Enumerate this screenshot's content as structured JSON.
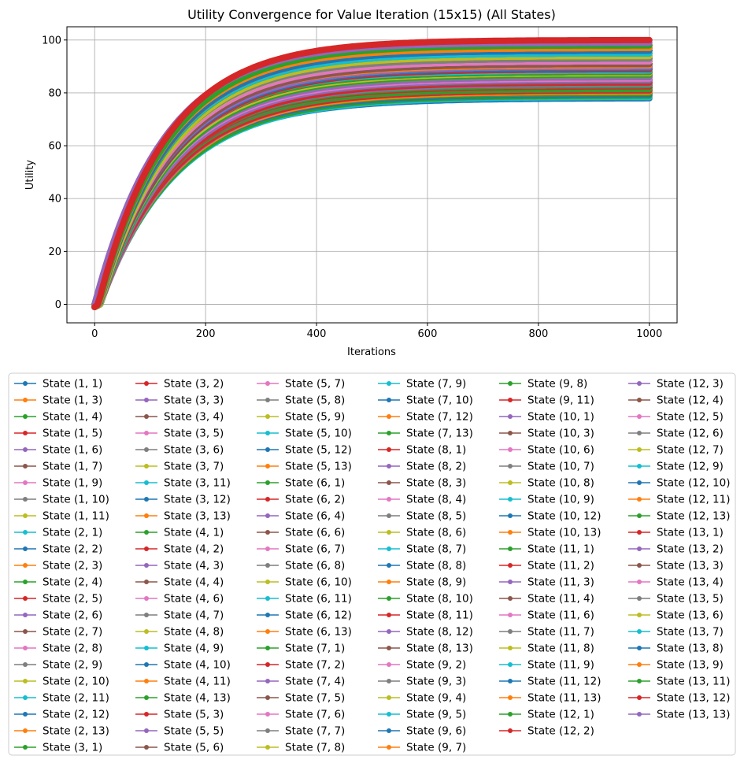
{
  "chart_data": {
    "type": "line",
    "title": "Utility Convergence for Value Iteration (15x15) (All States)",
    "xlabel": "Iterations",
    "ylabel": "Utility",
    "xlim": [
      -50,
      1050
    ],
    "ylim": [
      -7,
      105
    ],
    "x_ticks": [
      0,
      200,
      400,
      600,
      800,
      1000
    ],
    "y_ticks": [
      0,
      20,
      40,
      60,
      80,
      100
    ],
    "grid": true,
    "marker": "circle",
    "legend_placement": "below plot, 6 columns",
    "x_start": 0,
    "x_end": 1000,
    "series": [
      {
        "name": "State (1, 1)",
        "color": "#1f77b4",
        "final": 78
      },
      {
        "name": "State (1, 3)",
        "color": "#ff7f0e",
        "final": 79
      },
      {
        "name": "State (1, 4)",
        "color": "#2ca02c",
        "final": 80
      },
      {
        "name": "State (1, 5)",
        "color": "#d62728",
        "final": 81
      },
      {
        "name": "State (1, 6)",
        "color": "#9467bd",
        "final": 82
      },
      {
        "name": "State (1, 7)",
        "color": "#8c564b",
        "final": 83
      },
      {
        "name": "State (1, 9)",
        "color": "#e377c2",
        "final": 84
      },
      {
        "name": "State (1, 10)",
        "color": "#7f7f7f",
        "final": 85
      },
      {
        "name": "State (1, 11)",
        "color": "#bcbd22",
        "final": 86
      },
      {
        "name": "State (2, 1)",
        "color": "#17becf",
        "final": 78.5
      },
      {
        "name": "State (2, 2)",
        "color": "#1f77b4",
        "final": 79.5
      },
      {
        "name": "State (2, 3)",
        "color": "#ff7f0e",
        "final": 80.5
      },
      {
        "name": "State (2, 4)",
        "color": "#2ca02c",
        "final": 81.5
      },
      {
        "name": "State (2, 5)",
        "color": "#d62728",
        "final": 82.5
      },
      {
        "name": "State (2, 6)",
        "color": "#9467bd",
        "final": 83.5
      },
      {
        "name": "State (2, 7)",
        "color": "#8c564b",
        "final": 84.5
      },
      {
        "name": "State (2, 8)",
        "color": "#e377c2",
        "final": 85.5
      },
      {
        "name": "State (2, 9)",
        "color": "#7f7f7f",
        "final": 86.5
      },
      {
        "name": "State (2, 10)",
        "color": "#bcbd22",
        "final": 87.5
      },
      {
        "name": "State (2, 11)",
        "color": "#17becf",
        "final": 88.5
      },
      {
        "name": "State (2, 12)",
        "color": "#1f77b4",
        "final": 89.5
      },
      {
        "name": "State (2, 13)",
        "color": "#ff7f0e",
        "final": 90.5
      },
      {
        "name": "State (3, 1)",
        "color": "#2ca02c",
        "final": 79
      },
      {
        "name": "State (3, 2)",
        "color": "#d62728",
        "final": 80
      },
      {
        "name": "State (3, 3)",
        "color": "#9467bd",
        "final": 81
      },
      {
        "name": "State (3, 4)",
        "color": "#8c564b",
        "final": 82
      },
      {
        "name": "State (3, 5)",
        "color": "#e377c2",
        "final": 83
      },
      {
        "name": "State (3, 6)",
        "color": "#7f7f7f",
        "final": 84
      },
      {
        "name": "State (3, 7)",
        "color": "#bcbd22",
        "final": 85
      },
      {
        "name": "State (3, 11)",
        "color": "#17becf",
        "final": 88
      },
      {
        "name": "State (3, 12)",
        "color": "#1f77b4",
        "final": 89
      },
      {
        "name": "State (3, 13)",
        "color": "#ff7f0e",
        "final": 90
      },
      {
        "name": "State (4, 1)",
        "color": "#2ca02c",
        "final": 80
      },
      {
        "name": "State (4, 2)",
        "color": "#d62728",
        "final": 81
      },
      {
        "name": "State (4, 3)",
        "color": "#9467bd",
        "final": 82
      },
      {
        "name": "State (4, 4)",
        "color": "#8c564b",
        "final": 83
      },
      {
        "name": "State (4, 6)",
        "color": "#e377c2",
        "final": 84
      },
      {
        "name": "State (4, 7)",
        "color": "#7f7f7f",
        "final": 85
      },
      {
        "name": "State (4, 8)",
        "color": "#bcbd22",
        "final": 86
      },
      {
        "name": "State (4, 9)",
        "color": "#17becf",
        "final": 87
      },
      {
        "name": "State (4, 10)",
        "color": "#1f77b4",
        "final": 88
      },
      {
        "name": "State (4, 11)",
        "color": "#ff7f0e",
        "final": 89
      },
      {
        "name": "State (4, 13)",
        "color": "#2ca02c",
        "final": 91
      },
      {
        "name": "State (5, 3)",
        "color": "#d62728",
        "final": 82
      },
      {
        "name": "State (5, 5)",
        "color": "#9467bd",
        "final": 84
      },
      {
        "name": "State (5, 6)",
        "color": "#8c564b",
        "final": 85
      },
      {
        "name": "State (5, 7)",
        "color": "#e377c2",
        "final": 86
      },
      {
        "name": "State (5, 8)",
        "color": "#7f7f7f",
        "final": 87
      },
      {
        "name": "State (5, 9)",
        "color": "#bcbd22",
        "final": 88
      },
      {
        "name": "State (5, 10)",
        "color": "#17becf",
        "final": 89
      },
      {
        "name": "State (5, 12)",
        "color": "#1f77b4",
        "final": 91
      },
      {
        "name": "State (5, 13)",
        "color": "#ff7f0e",
        "final": 92
      },
      {
        "name": "State (6, 1)",
        "color": "#2ca02c",
        "final": 82
      },
      {
        "name": "State (6, 2)",
        "color": "#d62728",
        "final": 83
      },
      {
        "name": "State (6, 4)",
        "color": "#9467bd",
        "final": 85
      },
      {
        "name": "State (6, 6)",
        "color": "#8c564b",
        "final": 87
      },
      {
        "name": "State (6, 7)",
        "color": "#e377c2",
        "final": 88
      },
      {
        "name": "State (6, 8)",
        "color": "#7f7f7f",
        "final": 89
      },
      {
        "name": "State (6, 10)",
        "color": "#bcbd22",
        "final": 91
      },
      {
        "name": "State (6, 11)",
        "color": "#17becf",
        "final": 92
      },
      {
        "name": "State (6, 12)",
        "color": "#1f77b4",
        "final": 93
      },
      {
        "name": "State (6, 13)",
        "color": "#ff7f0e",
        "final": 94
      },
      {
        "name": "State (7, 1)",
        "color": "#2ca02c",
        "final": 83
      },
      {
        "name": "State (7, 2)",
        "color": "#d62728",
        "final": 84
      },
      {
        "name": "State (7, 4)",
        "color": "#9467bd",
        "final": 86
      },
      {
        "name": "State (7, 5)",
        "color": "#8c564b",
        "final": 87
      },
      {
        "name": "State (7, 6)",
        "color": "#e377c2",
        "final": 88
      },
      {
        "name": "State (7, 7)",
        "color": "#7f7f7f",
        "final": 89
      },
      {
        "name": "State (7, 8)",
        "color": "#bcbd22",
        "final": 90
      },
      {
        "name": "State (7, 9)",
        "color": "#17becf",
        "final": 91
      },
      {
        "name": "State (7, 10)",
        "color": "#1f77b4",
        "final": 92
      },
      {
        "name": "State (7, 12)",
        "color": "#ff7f0e",
        "final": 94
      },
      {
        "name": "State (7, 13)",
        "color": "#2ca02c",
        "final": 95
      },
      {
        "name": "State (8, 1)",
        "color": "#d62728",
        "final": 84
      },
      {
        "name": "State (8, 2)",
        "color": "#9467bd",
        "final": 85
      },
      {
        "name": "State (8, 3)",
        "color": "#8c564b",
        "final": 86
      },
      {
        "name": "State (8, 4)",
        "color": "#e377c2",
        "final": 87
      },
      {
        "name": "State (8, 5)",
        "color": "#7f7f7f",
        "final": 88
      },
      {
        "name": "State (8, 6)",
        "color": "#bcbd22",
        "final": 89
      },
      {
        "name": "State (8, 7)",
        "color": "#17becf",
        "final": 90
      },
      {
        "name": "State (8, 8)",
        "color": "#1f77b4",
        "final": 91
      },
      {
        "name": "State (8, 9)",
        "color": "#ff7f0e",
        "final": 92
      },
      {
        "name": "State (8, 10)",
        "color": "#2ca02c",
        "final": 93
      },
      {
        "name": "State (8, 11)",
        "color": "#d62728",
        "final": 94
      },
      {
        "name": "State (8, 12)",
        "color": "#9467bd",
        "final": 95
      },
      {
        "name": "State (8, 13)",
        "color": "#8c564b",
        "final": 96
      },
      {
        "name": "State (9, 2)",
        "color": "#e377c2",
        "final": 86
      },
      {
        "name": "State (9, 3)",
        "color": "#7f7f7f",
        "final": 87
      },
      {
        "name": "State (9, 4)",
        "color": "#bcbd22",
        "final": 88
      },
      {
        "name": "State (9, 5)",
        "color": "#17becf",
        "final": 89
      },
      {
        "name": "State (9, 6)",
        "color": "#1f77b4",
        "final": 90
      },
      {
        "name": "State (9, 7)",
        "color": "#ff7f0e",
        "final": 91
      },
      {
        "name": "State (9, 8)",
        "color": "#2ca02c",
        "final": 92
      },
      {
        "name": "State (9, 11)",
        "color": "#d62728",
        "final": 95
      },
      {
        "name": "State (10, 1)",
        "color": "#9467bd",
        "final": 86
      },
      {
        "name": "State (10, 3)",
        "color": "#8c564b",
        "final": 88
      },
      {
        "name": "State (10, 6)",
        "color": "#e377c2",
        "final": 91
      },
      {
        "name": "State (10, 7)",
        "color": "#7f7f7f",
        "final": 92
      },
      {
        "name": "State (10, 8)",
        "color": "#bcbd22",
        "final": 93
      },
      {
        "name": "State (10, 9)",
        "color": "#17becf",
        "final": 94
      },
      {
        "name": "State (10, 12)",
        "color": "#1f77b4",
        "final": 97
      },
      {
        "name": "State (10, 13)",
        "color": "#ff7f0e",
        "final": 98
      },
      {
        "name": "State (11, 1)",
        "color": "#2ca02c",
        "final": 87
      },
      {
        "name": "State (11, 2)",
        "color": "#d62728",
        "final": 88
      },
      {
        "name": "State (11, 3)",
        "color": "#9467bd",
        "final": 89
      },
      {
        "name": "State (11, 4)",
        "color": "#8c564b",
        "final": 90
      },
      {
        "name": "State (11, 6)",
        "color": "#e377c2",
        "final": 92
      },
      {
        "name": "State (11, 7)",
        "color": "#7f7f7f",
        "final": 93
      },
      {
        "name": "State (11, 8)",
        "color": "#bcbd22",
        "final": 94
      },
      {
        "name": "State (11, 9)",
        "color": "#17becf",
        "final": 95
      },
      {
        "name": "State (11, 12)",
        "color": "#1f77b4",
        "final": 97
      },
      {
        "name": "State (11, 13)",
        "color": "#ff7f0e",
        "final": 98
      },
      {
        "name": "State (12, 1)",
        "color": "#2ca02c",
        "final": 88
      },
      {
        "name": "State (12, 2)",
        "color": "#d62728",
        "final": 89
      },
      {
        "name": "State (12, 3)",
        "color": "#9467bd",
        "final": 90
      },
      {
        "name": "State (12, 4)",
        "color": "#8c564b",
        "final": 91
      },
      {
        "name": "State (12, 5)",
        "color": "#e377c2",
        "final": 92
      },
      {
        "name": "State (12, 6)",
        "color": "#7f7f7f",
        "final": 93
      },
      {
        "name": "State (12, 7)",
        "color": "#bcbd22",
        "final": 94
      },
      {
        "name": "State (12, 9)",
        "color": "#17becf",
        "final": 95
      },
      {
        "name": "State (12, 10)",
        "color": "#1f77b4",
        "final": 96
      },
      {
        "name": "State (12, 11)",
        "color": "#ff7f0e",
        "final": 97
      },
      {
        "name": "State (12, 13)",
        "color": "#2ca02c",
        "final": 98
      },
      {
        "name": "State (13, 1)",
        "color": "#d62728",
        "final": 89
      },
      {
        "name": "State (13, 2)",
        "color": "#9467bd",
        "final": 90
      },
      {
        "name": "State (13, 3)",
        "color": "#8c564b",
        "final": 91
      },
      {
        "name": "State (13, 4)",
        "color": "#e377c2",
        "final": 92
      },
      {
        "name": "State (13, 5)",
        "color": "#7f7f7f",
        "final": 93
      },
      {
        "name": "State (13, 6)",
        "color": "#bcbd22",
        "final": 94
      },
      {
        "name": "State (13, 7)",
        "color": "#17becf",
        "final": 95
      },
      {
        "name": "State (13, 8)",
        "color": "#1f77b4",
        "final": 96
      },
      {
        "name": "State (13, 9)",
        "color": "#ff7f0e",
        "final": 97
      },
      {
        "name": "State (13, 11)",
        "color": "#2ca02c",
        "final": 98
      },
      {
        "name": "State (13, 12)",
        "color": "#d62728",
        "final": 100
      },
      {
        "name": "State (13, 13)",
        "color": "#9467bd",
        "final": 99
      }
    ]
  }
}
